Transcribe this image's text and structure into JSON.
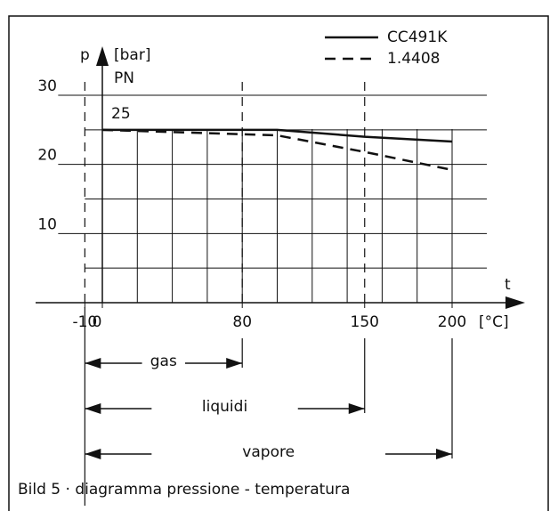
{
  "chart_data": {
    "type": "line",
    "x": [
      0,
      100,
      150,
      200
    ],
    "series": [
      {
        "name": "CC491K",
        "color": "#111111",
        "dash": false,
        "values": [
          25,
          25,
          24,
          23.3
        ]
      },
      {
        "name": "1.4408",
        "color": "#111111",
        "dash": true,
        "values": [
          25,
          24.2,
          21.8,
          19.2
        ]
      }
    ],
    "xlim": [
      -10,
      200
    ],
    "ylim": [
      0,
      30
    ],
    "xticks": [
      -10,
      0,
      80,
      150,
      200
    ],
    "yticks": [
      10,
      20,
      30
    ],
    "xgrid": [
      20,
      40,
      60,
      80,
      100,
      120,
      140,
      160,
      180,
      200
    ],
    "ygrid": [
      5,
      15,
      25
    ],
    "dashed_x": [
      -10,
      80,
      150
    ],
    "pn": 25,
    "y_label": "p",
    "y_unit": "[bar]",
    "y_sub": "PN",
    "x_label": "t",
    "x_unit": "[°C]",
    "ranges": [
      {
        "label": "gas",
        "from": -10,
        "to": 80
      },
      {
        "label": "liquidi",
        "from": -10,
        "to": 150
      },
      {
        "label": "vapore",
        "from": -10,
        "to": 200
      }
    ],
    "caption": "Bild 5 · diagramma pressione - temperatura"
  }
}
